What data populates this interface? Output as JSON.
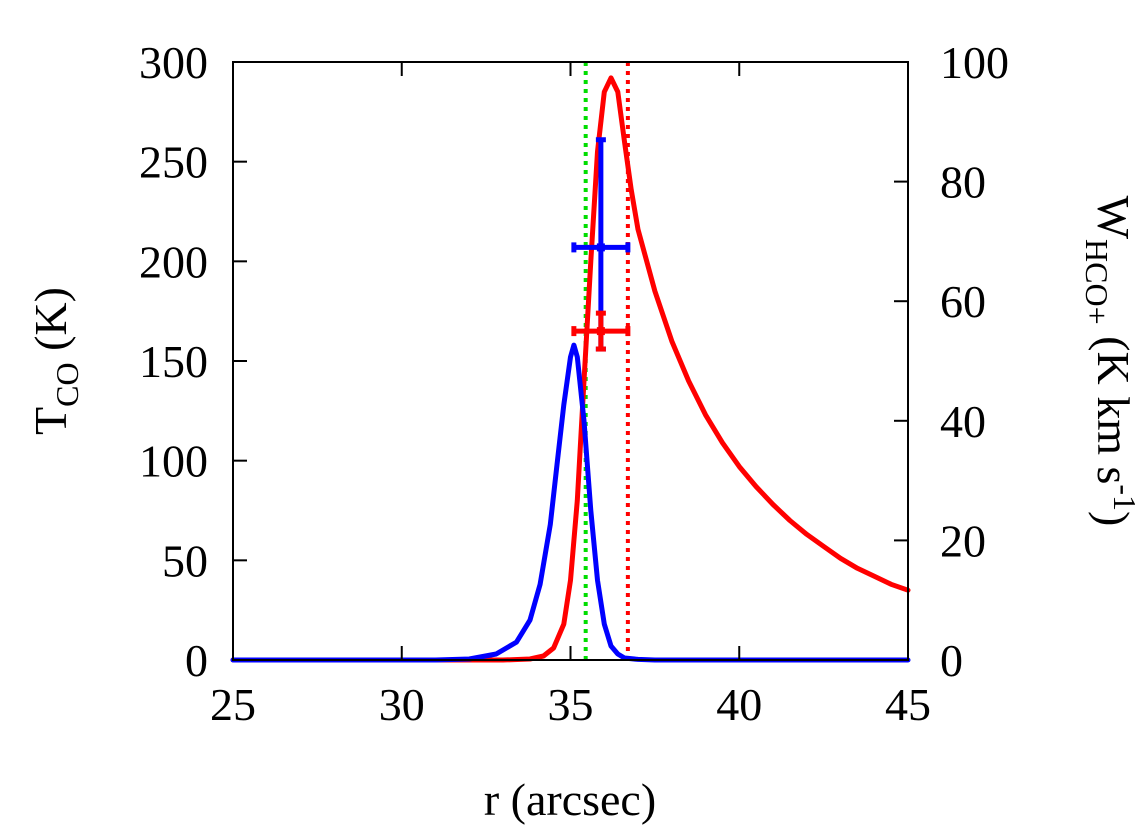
{
  "chart_data": {
    "type": "line",
    "xlabel": "r (arcsec)",
    "ylabel_left": {
      "main": "T",
      "sub": "CO",
      "rest": " (K)"
    },
    "ylabel_right": {
      "main": "W",
      "sub": "HCO+",
      "rest": " (K km s",
      "sup": "-1",
      "close": ")"
    },
    "xlim": [
      25,
      45
    ],
    "ylim_left": [
      0,
      300
    ],
    "ylim_right": [
      0,
      100
    ],
    "x_ticks": [
      "25",
      "30",
      "35",
      "40",
      "45"
    ],
    "y_left_ticks": [
      "0",
      "50",
      "100",
      "150",
      "200",
      "250",
      "300"
    ],
    "y_right_ticks": [
      "0",
      "20",
      "40",
      "60",
      "80",
      "100"
    ],
    "x_tick_values": [
      25,
      30,
      35,
      40,
      45
    ],
    "y_left_tick_values": [
      0,
      50,
      100,
      150,
      200,
      250,
      300
    ],
    "y_right_tick_values": [
      0,
      20,
      40,
      60,
      80,
      100
    ],
    "grid": false,
    "series": [
      {
        "color": "#ff0000",
        "axis": "left",
        "x": [
          25,
          33.0,
          33.8,
          34.2,
          34.5,
          34.8,
          35.0,
          35.2,
          35.4,
          35.6,
          35.8,
          36.0,
          36.2,
          36.4,
          36.6,
          36.8,
          37.0,
          37.5,
          38.0,
          38.5,
          39.0,
          39.5,
          40.0,
          40.5,
          41.0,
          41.5,
          42.0,
          42.5,
          43.0,
          43.5,
          44.0,
          44.5,
          45.0
        ],
        "y": [
          0,
          0,
          0.5,
          2,
          6,
          18,
          40,
          80,
          140,
          200,
          255,
          285,
          292,
          285,
          260,
          236,
          216,
          185,
          160,
          140,
          123,
          109,
          97,
          87,
          78,
          70,
          63,
          57,
          51,
          46,
          42,
          38,
          35
        ]
      },
      {
        "color": "#0000ff",
        "axis": "left",
        "x": [
          25,
          31.0,
          32.0,
          32.8,
          33.4,
          33.8,
          34.1,
          34.4,
          34.6,
          34.8,
          35.0,
          35.1,
          35.2,
          35.4,
          35.6,
          35.8,
          36.0,
          36.2,
          36.4,
          36.6,
          37.0,
          37.5,
          38.0,
          45.0
        ],
        "y": [
          0,
          0,
          0.5,
          3,
          9,
          20,
          38,
          68,
          98,
          128,
          152,
          158,
          152,
          120,
          75,
          40,
          18,
          7,
          3,
          1,
          0.3,
          0,
          0,
          0
        ]
      }
    ],
    "vlines": [
      {
        "x": 35.45,
        "color": "#00dd00",
        "style": "dotted"
      },
      {
        "x": 36.7,
        "color": "#ff0000",
        "style": "dotted"
      }
    ],
    "error_points": [
      {
        "color": "#0000ff",
        "axis": "right",
        "x": 35.9,
        "y": 69,
        "xerr": [
          35.1,
          36.7
        ],
        "yerr": [
          52,
          87
        ]
      },
      {
        "color": "#ff0000",
        "axis": "right",
        "x": 35.9,
        "y": 55,
        "xerr": [
          35.1,
          36.7
        ],
        "yerr": [
          52,
          58
        ]
      }
    ]
  }
}
